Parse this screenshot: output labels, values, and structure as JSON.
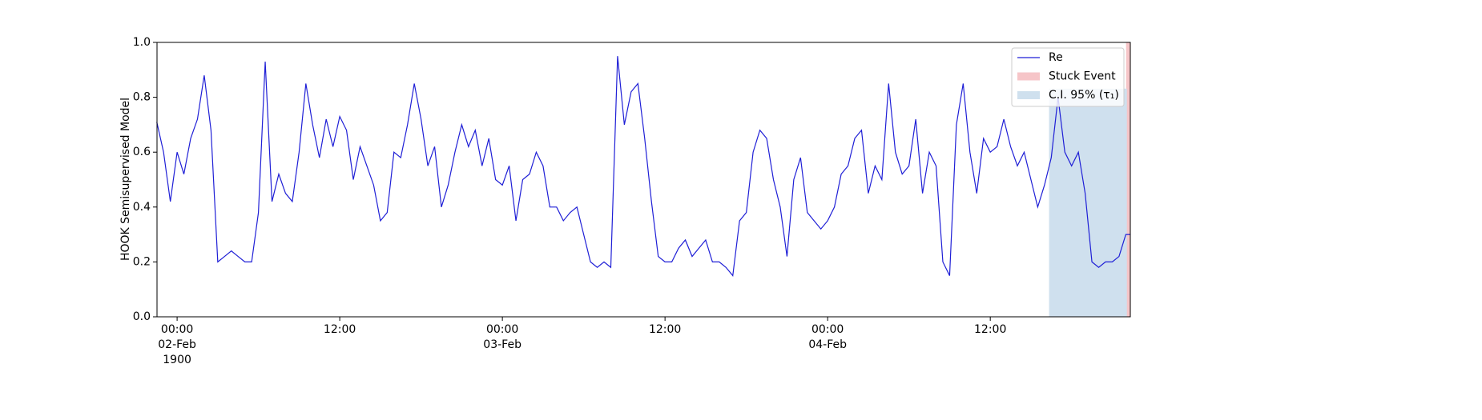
{
  "chart_data": {
    "type": "line",
    "ylabel": "HOOK Semisupervised Model",
    "xlim": [
      "1900-02-01T22:31",
      "1900-02-04T22:20"
    ],
    "xticks": [
      {
        "value": "1900-02-02T00:00",
        "label": "00:00\n02-Feb\n1900"
      },
      {
        "value": "1900-02-02T12:00",
        "label": "12:00"
      },
      {
        "value": "1900-02-03T00:00",
        "label": "00:00\n03-Feb"
      },
      {
        "value": "1900-02-03T12:00",
        "label": "12:00"
      },
      {
        "value": "1900-02-04T00:00",
        "label": "00:00\n04-Feb"
      },
      {
        "value": "1900-02-04T12:00",
        "label": "12:00"
      }
    ],
    "ylim": [
      0,
      1
    ],
    "yticks": [
      {
        "value": 0,
        "label": "0.0"
      },
      0.2,
      0.4,
      0.6,
      0.8,
      {
        "value": 1,
        "label": "1.0"
      }
    ],
    "legend": "upper right",
    "spans": [
      {
        "name": "Stuck Event",
        "color": "#f6c5c8",
        "x": [
          "1900-02-04T22:03",
          "1900-02-04T22:20"
        ],
        "y": [
          0,
          1
        ]
      },
      {
        "name": "C.I. 95% (τ₁)",
        "color": "#cfe0ee",
        "x": [
          "1900-02-04T16:22",
          "1900-02-04T22:03"
        ],
        "y": [
          0,
          0.83
        ]
      }
    ],
    "x": [
      "1900-02-01T22:30",
      "1900-02-01T23:00",
      "1900-02-01T23:30",
      "1900-02-02T00:00",
      "1900-02-02T00:30",
      "1900-02-02T01:00",
      "1900-02-02T01:30",
      "1900-02-02T02:00",
      "1900-02-02T02:30",
      "1900-02-02T03:00",
      "1900-02-02T03:30",
      "1900-02-02T04:00",
      "1900-02-02T04:30",
      "1900-02-02T05:00",
      "1900-02-02T05:30",
      "1900-02-02T06:00",
      "1900-02-02T06:30",
      "1900-02-02T07:00",
      "1900-02-02T07:30",
      "1900-02-02T08:00",
      "1900-02-02T08:30",
      "1900-02-02T09:00",
      "1900-02-02T09:30",
      "1900-02-02T10:00",
      "1900-02-02T10:30",
      "1900-02-02T11:00",
      "1900-02-02T11:30",
      "1900-02-02T12:00",
      "1900-02-02T12:30",
      "1900-02-02T13:00",
      "1900-02-02T13:30",
      "1900-02-02T14:00",
      "1900-02-02T14:30",
      "1900-02-02T15:00",
      "1900-02-02T15:30",
      "1900-02-02T16:00",
      "1900-02-02T16:30",
      "1900-02-02T17:00",
      "1900-02-02T17:30",
      "1900-02-02T18:00",
      "1900-02-02T18:30",
      "1900-02-02T19:00",
      "1900-02-02T19:30",
      "1900-02-02T20:00",
      "1900-02-02T20:30",
      "1900-02-02T21:00",
      "1900-02-02T21:30",
      "1900-02-02T22:00",
      "1900-02-02T22:30",
      "1900-02-02T23:00",
      "1900-02-02T23:30",
      "1900-02-03T00:00",
      "1900-02-03T00:30",
      "1900-02-03T01:00",
      "1900-02-03T01:30",
      "1900-02-03T02:00",
      "1900-02-03T02:30",
      "1900-02-03T03:00",
      "1900-02-03T03:30",
      "1900-02-03T04:00",
      "1900-02-03T04:30",
      "1900-02-03T05:00",
      "1900-02-03T05:30",
      "1900-02-03T06:00",
      "1900-02-03T06:30",
      "1900-02-03T07:00",
      "1900-02-03T07:30",
      "1900-02-03T08:00",
      "1900-02-03T08:30",
      "1900-02-03T09:00",
      "1900-02-03T09:30",
      "1900-02-03T10:00",
      "1900-02-03T10:30",
      "1900-02-03T11:00",
      "1900-02-03T11:30",
      "1900-02-03T12:00",
      "1900-02-03T12:30",
      "1900-02-03T13:00",
      "1900-02-03T13:30",
      "1900-02-03T14:00",
      "1900-02-03T14:30",
      "1900-02-03T15:00",
      "1900-02-03T15:30",
      "1900-02-03T16:00",
      "1900-02-03T16:30",
      "1900-02-03T17:00",
      "1900-02-03T17:30",
      "1900-02-03T18:00",
      "1900-02-03T18:30",
      "1900-02-03T19:00",
      "1900-02-03T19:30",
      "1900-02-03T20:00",
      "1900-02-03T20:30",
      "1900-02-03T21:00",
      "1900-02-03T21:30",
      "1900-02-03T22:00",
      "1900-02-03T22:30",
      "1900-02-03T23:00",
      "1900-02-03T23:30",
      "1900-02-04T00:00",
      "1900-02-04T00:30",
      "1900-02-04T01:00",
      "1900-02-04T01:30",
      "1900-02-04T02:00",
      "1900-02-04T02:30",
      "1900-02-04T03:00",
      "1900-02-04T03:30",
      "1900-02-04T04:00",
      "1900-02-04T04:30",
      "1900-02-04T05:00",
      "1900-02-04T05:30",
      "1900-02-04T06:00",
      "1900-02-04T06:30",
      "1900-02-04T07:00",
      "1900-02-04T07:30",
      "1900-02-04T08:00",
      "1900-02-04T08:30",
      "1900-02-04T09:00",
      "1900-02-04T09:30",
      "1900-02-04T10:00",
      "1900-02-04T10:30",
      "1900-02-04T11:00",
      "1900-02-04T11:30",
      "1900-02-04T12:00",
      "1900-02-04T12:30",
      "1900-02-04T13:00",
      "1900-02-04T13:30",
      "1900-02-04T14:00",
      "1900-02-04T14:30",
      "1900-02-04T15:00",
      "1900-02-04T15:30",
      "1900-02-04T16:00",
      "1900-02-04T16:30",
      "1900-02-04T17:00",
      "1900-02-04T17:30",
      "1900-02-04T18:00",
      "1900-02-04T18:30",
      "1900-02-04T19:00",
      "1900-02-04T19:30",
      "1900-02-04T20:00",
      "1900-02-04T20:30",
      "1900-02-04T21:00",
      "1900-02-04T21:30",
      "1900-02-04T22:00",
      "1900-02-04T22:18"
    ],
    "series": [
      {
        "name": "Re",
        "color": "#1f1fd6",
        "values": [
          0.71,
          0.6,
          0.42,
          0.6,
          0.52,
          0.65,
          0.72,
          0.88,
          0.68,
          0.2,
          0.22,
          0.24,
          0.22,
          0.2,
          0.2,
          0.38,
          0.93,
          0.42,
          0.52,
          0.45,
          0.42,
          0.6,
          0.85,
          0.7,
          0.58,
          0.72,
          0.62,
          0.73,
          0.68,
          0.5,
          0.62,
          0.55,
          0.48,
          0.35,
          0.38,
          0.6,
          0.58,
          0.7,
          0.85,
          0.72,
          0.55,
          0.62,
          0.4,
          0.48,
          0.6,
          0.7,
          0.62,
          0.68,
          0.55,
          0.65,
          0.5,
          0.48,
          0.55,
          0.35,
          0.5,
          0.52,
          0.6,
          0.55,
          0.4,
          0.4,
          0.35,
          0.38,
          0.4,
          0.3,
          0.2,
          0.18,
          0.2,
          0.18,
          0.95,
          0.7,
          0.82,
          0.85,
          0.65,
          0.42,
          0.22,
          0.2,
          0.2,
          0.25,
          0.28,
          0.22,
          0.25,
          0.28,
          0.2,
          0.2,
          0.18,
          0.15,
          0.35,
          0.38,
          0.6,
          0.68,
          0.65,
          0.5,
          0.4,
          0.22,
          0.5,
          0.58,
          0.38,
          0.35,
          0.32,
          0.35,
          0.4,
          0.52,
          0.55,
          0.65,
          0.68,
          0.45,
          0.55,
          0.5,
          0.85,
          0.6,
          0.52,
          0.55,
          0.72,
          0.45,
          0.6,
          0.55,
          0.2,
          0.15,
          0.7,
          0.85,
          0.6,
          0.45,
          0.65,
          0.6,
          0.62,
          0.72,
          0.62,
          0.55,
          0.6,
          0.5,
          0.4,
          0.48,
          0.58,
          0.8,
          0.6,
          0.55,
          0.6,
          0.45,
          0.2,
          0.18,
          0.2,
          0.2,
          0.22,
          0.3,
          0.3
        ]
      }
    ]
  }
}
